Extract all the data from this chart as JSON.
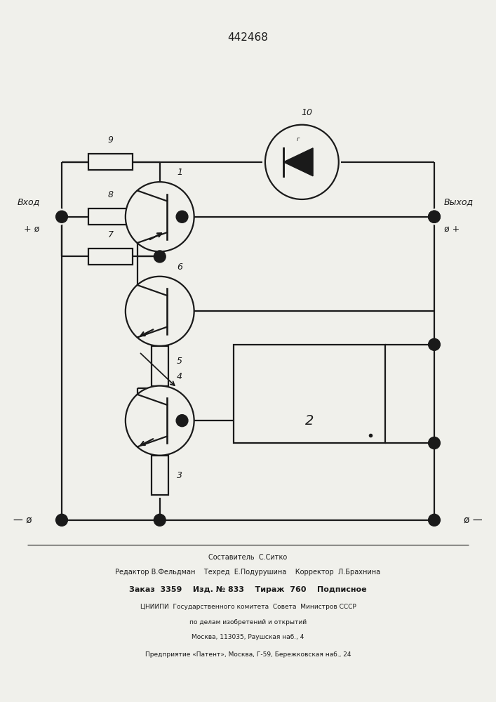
{
  "title": "442468",
  "bg_color": "#f0f0eb",
  "line_color": "#1a1a1a",
  "line_width": 1.6,
  "fig_width": 7.07,
  "fig_height": 10.0,
  "footer": {
    "sestavitel": "Составитель  С.Ситко",
    "line2": "Редактор В.Фельдман    Техред  Е.Подурушина    Корректор  Л.Брахнина",
    "line3": "Заказ  3359    Изд. № 833    Тираж  760    Подписное",
    "line4": "ЦНИИПИ  Государственного комитета  Совета  Министров СССР",
    "line5": "по делам изобретений и открытий",
    "line6": "Москва, 113035, Раушская наб., 4",
    "line7": "Предприятие «Патент», Москва, Г-59, Бережковская наб., 24"
  }
}
